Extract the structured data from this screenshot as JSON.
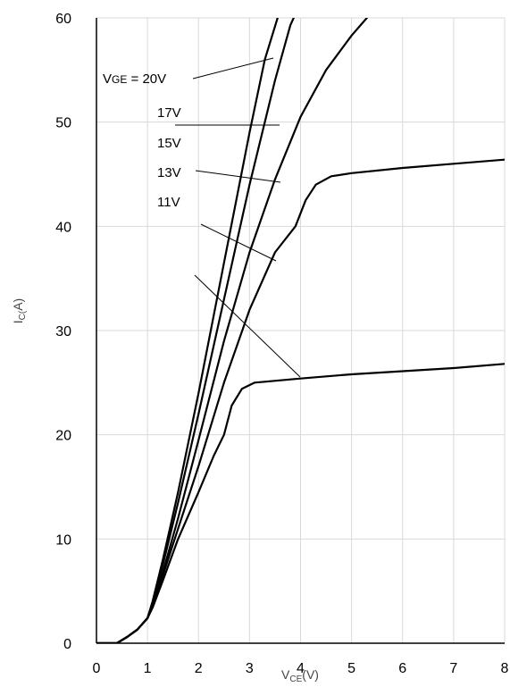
{
  "chart_data": {
    "type": "line",
    "title": "",
    "xlabel": "VCE(V)",
    "ylabel": "IC(A)",
    "xlim": [
      0,
      8
    ],
    "ylim": [
      0,
      60
    ],
    "x_ticks": [
      "0",
      "1",
      "2",
      "3",
      "4",
      "5",
      "6",
      "7",
      "8"
    ],
    "y_ticks": [
      "0",
      "10",
      "20",
      "30",
      "40",
      "50",
      "60"
    ],
    "grid": true,
    "series": [
      {
        "name": "VGE = 20V",
        "points": [
          [
            0,
            0
          ],
          [
            0.4,
            0
          ],
          [
            0.6,
            0.6
          ],
          [
            0.8,
            1.3
          ],
          [
            1.0,
            2.4
          ],
          [
            1.1,
            4
          ],
          [
            1.3,
            8
          ],
          [
            1.6,
            14.5
          ],
          [
            2.0,
            24
          ],
          [
            2.5,
            36.5
          ],
          [
            3.0,
            49
          ],
          [
            3.3,
            56
          ],
          [
            3.55,
            60
          ]
        ]
      },
      {
        "name": "17V",
        "points": [
          [
            0,
            0
          ],
          [
            0.4,
            0
          ],
          [
            0.6,
            0.6
          ],
          [
            0.8,
            1.3
          ],
          [
            1.0,
            2.4
          ],
          [
            1.1,
            3.8
          ],
          [
            1.3,
            7.5
          ],
          [
            1.6,
            13.5
          ],
          [
            2.0,
            22
          ],
          [
            2.5,
            33
          ],
          [
            3.0,
            44
          ],
          [
            3.5,
            54
          ],
          [
            3.8,
            59.3
          ],
          [
            4.05,
            62
          ]
        ]
      },
      {
        "name": "15V",
        "points": [
          [
            0,
            0
          ],
          [
            0.4,
            0
          ],
          [
            0.6,
            0.6
          ],
          [
            0.8,
            1.3
          ],
          [
            1.0,
            2.4
          ],
          [
            1.1,
            3.6
          ],
          [
            1.3,
            6.8
          ],
          [
            1.6,
            12
          ],
          [
            2.0,
            19.5
          ],
          [
            2.5,
            29
          ],
          [
            3.0,
            37.5
          ],
          [
            3.5,
            44.5
          ],
          [
            4.0,
            50.5
          ],
          [
            4.5,
            55
          ],
          [
            5.0,
            58.3
          ],
          [
            5.3,
            60
          ]
        ]
      },
      {
        "name": "13V",
        "points": [
          [
            0,
            0
          ],
          [
            0.4,
            0
          ],
          [
            0.6,
            0.6
          ],
          [
            0.8,
            1.3
          ],
          [
            1.0,
            2.4
          ],
          [
            1.1,
            3.5
          ],
          [
            1.3,
            6.5
          ],
          [
            1.6,
            11
          ],
          [
            2.0,
            17
          ],
          [
            2.5,
            25
          ],
          [
            3.0,
            32
          ],
          [
            3.5,
            37.5
          ],
          [
            3.9,
            40
          ],
          [
            4.1,
            42.5
          ],
          [
            4.3,
            44
          ],
          [
            4.6,
            44.8
          ],
          [
            5.0,
            45.1
          ],
          [
            6.0,
            45.6
          ],
          [
            7.0,
            46
          ],
          [
            8.0,
            46.4
          ]
        ]
      },
      {
        "name": "11V",
        "points": [
          [
            0,
            0
          ],
          [
            0.4,
            0
          ],
          [
            0.6,
            0.6
          ],
          [
            0.8,
            1.3
          ],
          [
            1.0,
            2.4
          ],
          [
            1.1,
            3.4
          ],
          [
            1.3,
            6
          ],
          [
            1.6,
            10
          ],
          [
            2.0,
            14.5
          ],
          [
            2.3,
            18
          ],
          [
            2.5,
            20
          ],
          [
            2.65,
            22.8
          ],
          [
            2.85,
            24.4
          ],
          [
            3.1,
            25
          ],
          [
            4.0,
            25.4
          ],
          [
            5.0,
            25.8
          ],
          [
            6.0,
            26.1
          ],
          [
            7.0,
            26.4
          ],
          [
            8.0,
            26.8
          ]
        ]
      }
    ],
    "annotations": [
      {
        "label": "VGE = 20V",
        "points_to": "VGE = 20V"
      },
      {
        "label": "17V",
        "points_to": "17V"
      },
      {
        "label": "15V",
        "points_to": "15V"
      },
      {
        "label": "13V",
        "points_to": "13V"
      },
      {
        "label": "11V",
        "points_to": "11V"
      }
    ]
  }
}
